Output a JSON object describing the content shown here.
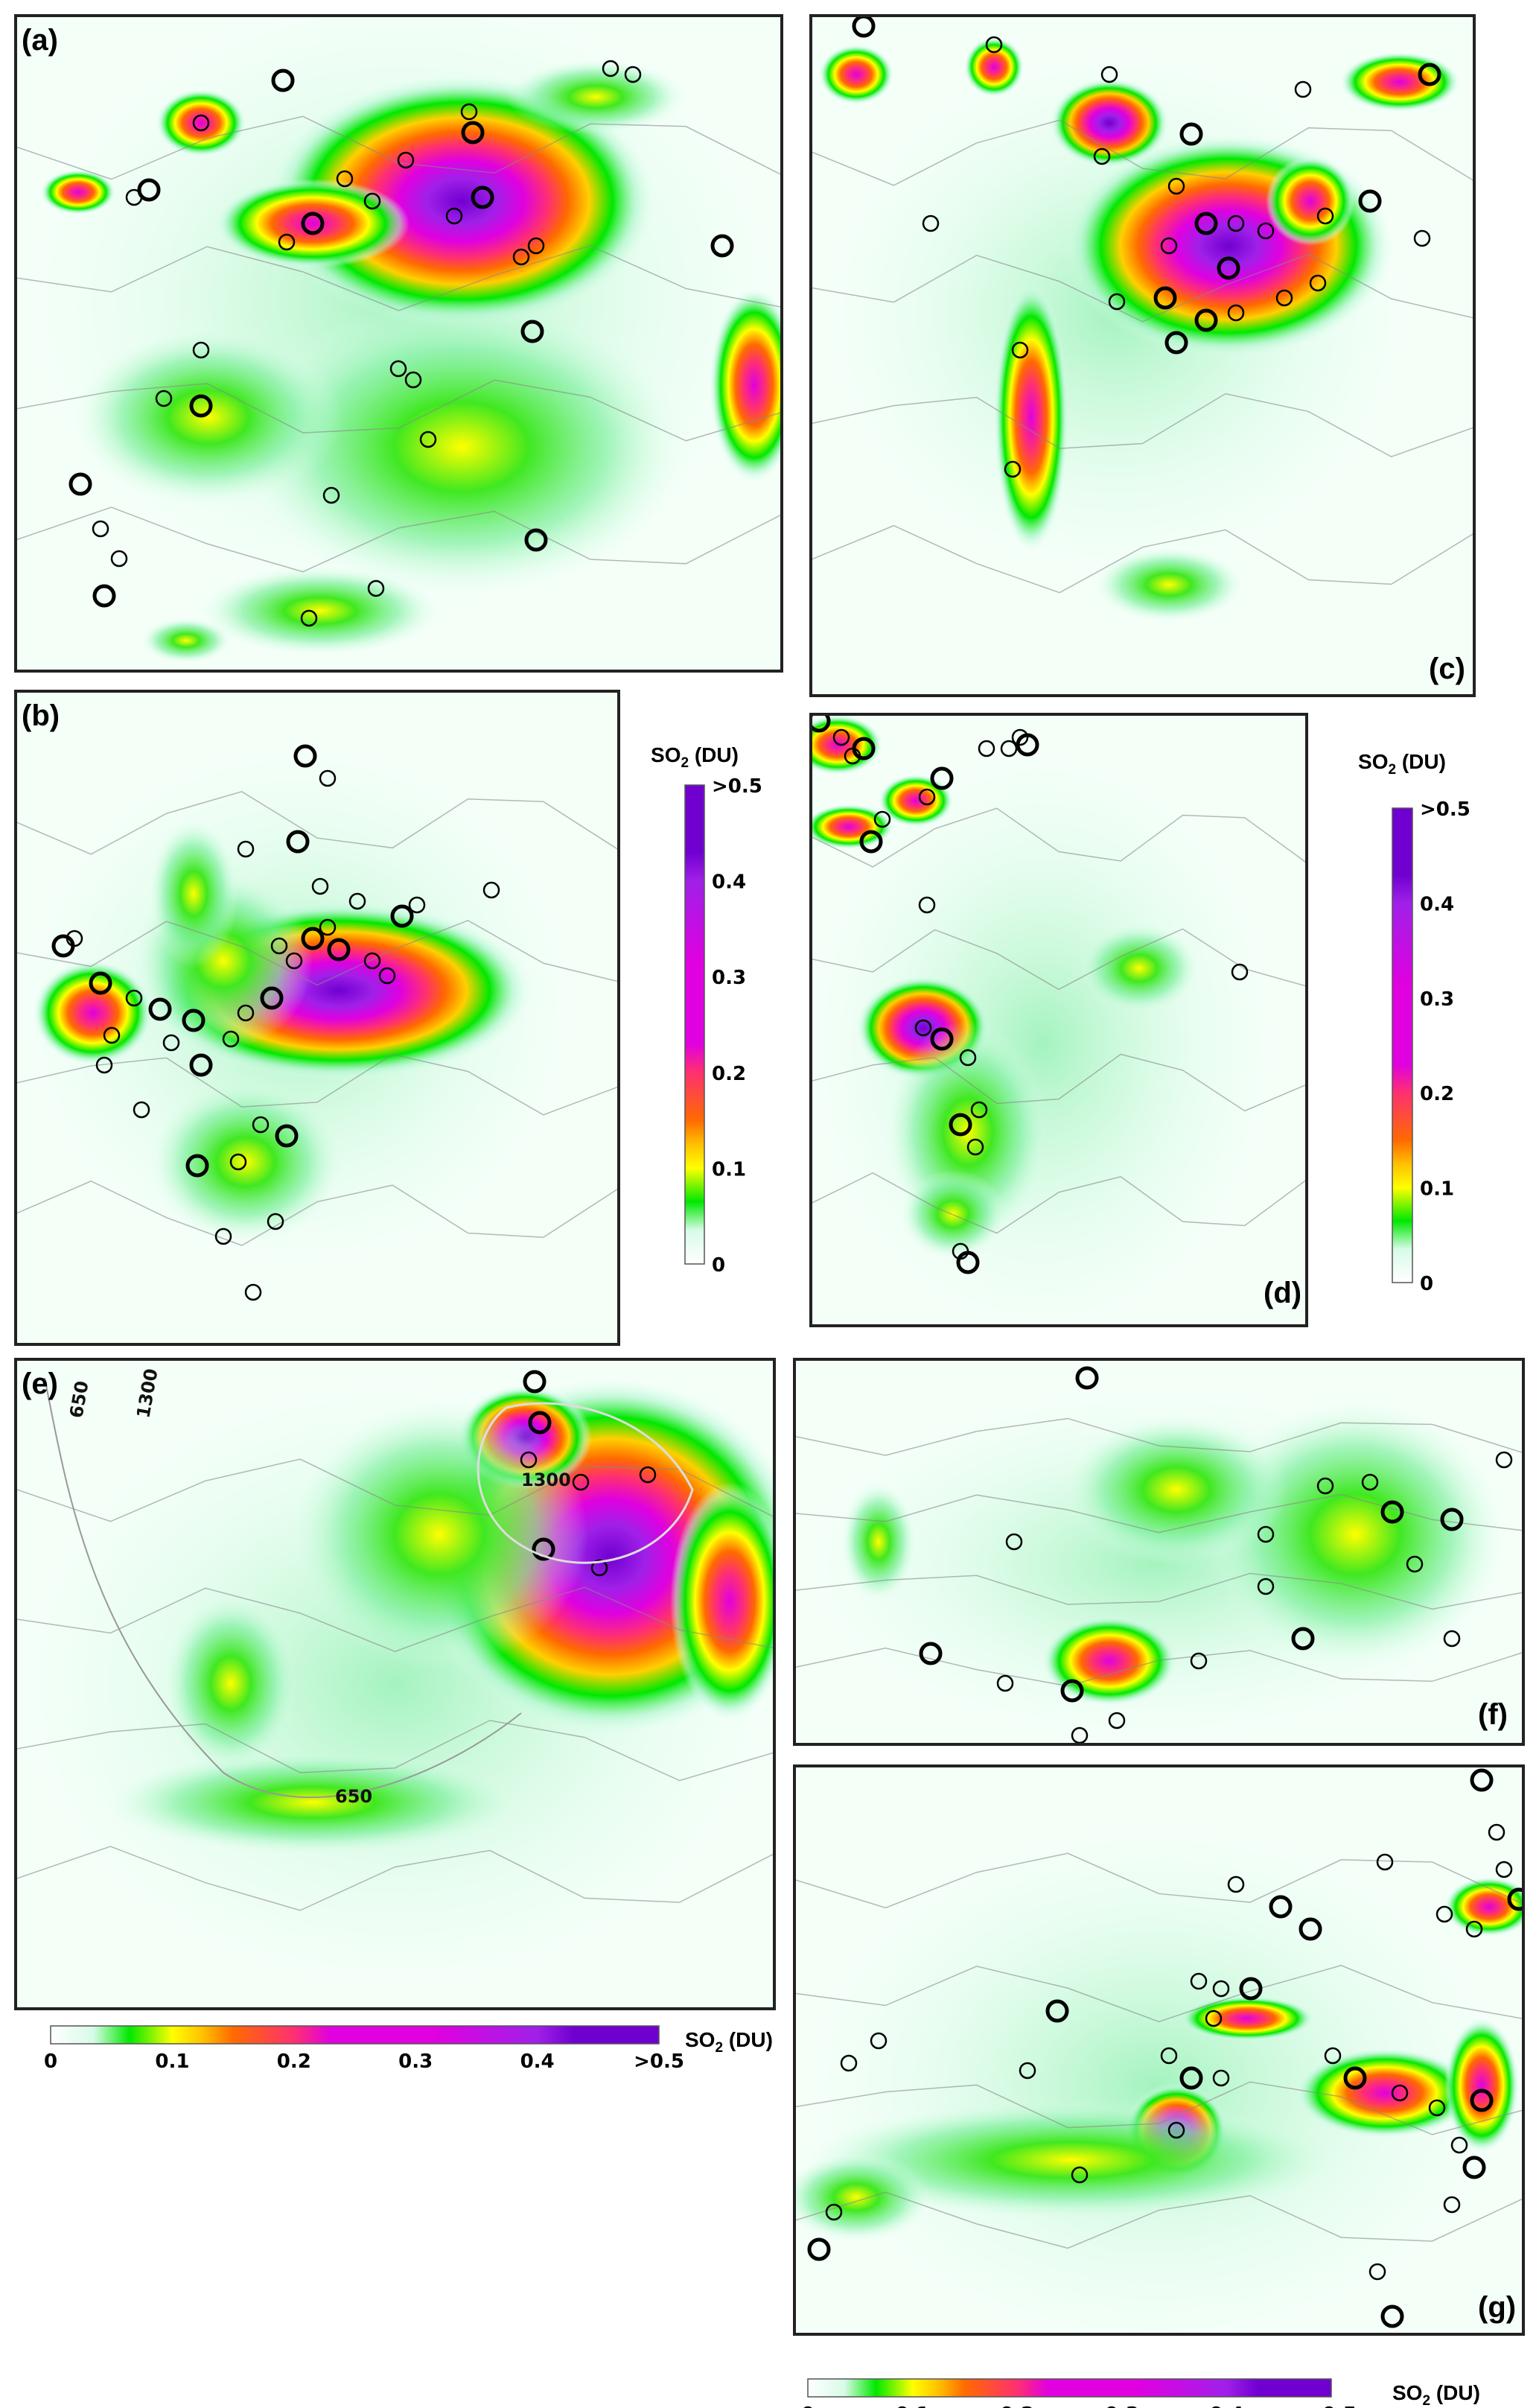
{
  "figure": {
    "panels": [
      {
        "id": "a",
        "label": "(a)"
      },
      {
        "id": "b",
        "label": "(b)"
      },
      {
        "id": "c",
        "label": "(c)"
      },
      {
        "id": "d",
        "label": "(d)"
      },
      {
        "id": "e",
        "label": "(e)",
        "contour_labels": [
          "650",
          "1300",
          "1300",
          "650"
        ]
      },
      {
        "id": "f",
        "label": "(f)"
      },
      {
        "id": "g",
        "label": "(g)"
      }
    ],
    "colorbar": {
      "title_main": "SO",
      "title_sub": "2",
      "title_unit": " (DU)",
      "ticks": [
        "0",
        "0.1",
        "0.2",
        "0.3",
        "0.4",
        ">0.5"
      ],
      "range": [
        0,
        0.5
      ],
      "colors": [
        "#ffffff",
        "#d8fbe8",
        "#00e800",
        "#ffff00",
        "#ffc000",
        "#ff6a00",
        "#ff3070",
        "#e000e0",
        "#a020e8",
        "#7000d0"
      ]
    },
    "marker_style": "black open circles"
  }
}
